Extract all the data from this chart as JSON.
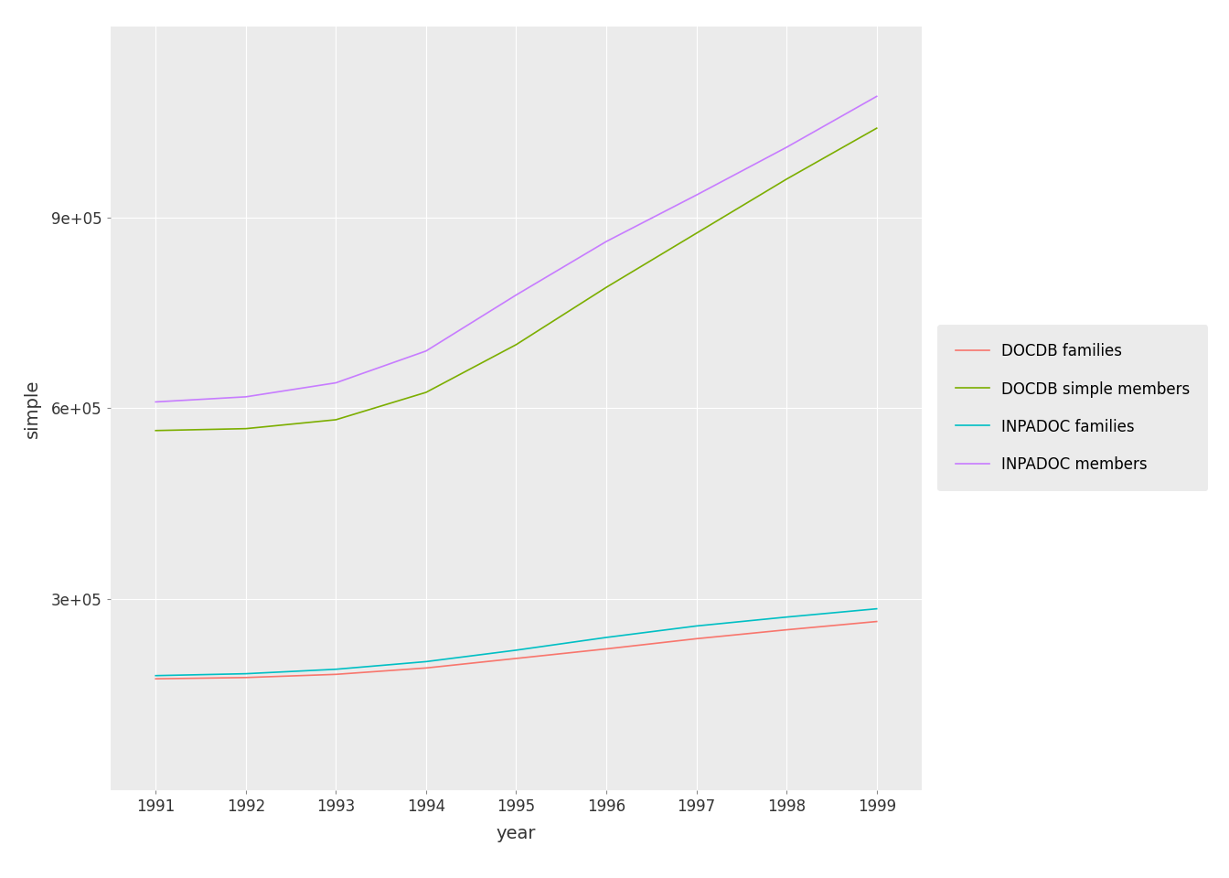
{
  "years": [
    1991,
    1992,
    1993,
    1994,
    1995,
    1996,
    1997,
    1998,
    1999
  ],
  "DOCDB_families": [
    175000,
    177000,
    182000,
    192000,
    207000,
    222000,
    238000,
    252000,
    265000
  ],
  "DOCDB_simple_members": [
    565000,
    568000,
    582000,
    625000,
    700000,
    790000,
    875000,
    960000,
    1040000
  ],
  "INPADOC_families": [
    180000,
    183000,
    190000,
    202000,
    220000,
    240000,
    258000,
    272000,
    285000
  ],
  "INPADOC_members": [
    610000,
    618000,
    640000,
    690000,
    778000,
    862000,
    935000,
    1010000,
    1090000
  ],
  "line_colors": {
    "DOCDB_families": "#F8766D",
    "DOCDB_simple_members": "#7CAE00",
    "INPADOC_families": "#00BFC4",
    "INPADOC_members": "#C77CFF"
  },
  "legend_labels": {
    "DOCDB_families": "DOCDB families",
    "DOCDB_simple_members": "DOCDB simple members",
    "INPADOC_families": "INPADOC families",
    "INPADOC_members": "INPADOC members"
  },
  "xlabel": "year",
  "ylabel": "simple",
  "plot_background": "#EBEBEB",
  "fig_background": "#FFFFFF",
  "grid_color": "#FFFFFF",
  "line_width": 1.2,
  "yticks": [
    300000,
    600000,
    900000
  ],
  "ylim": [
    0,
    1200000
  ],
  "xlim": [
    1990.5,
    1999.5
  ]
}
